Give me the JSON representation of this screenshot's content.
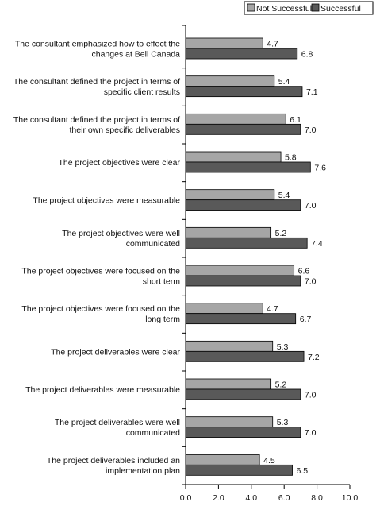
{
  "chart_data": {
    "type": "bar",
    "orientation": "horizontal",
    "categories": [
      [
        "The consultant emphasized how to effect the",
        "changes at Bell Canada"
      ],
      [
        "The consultant defined the project in terms of",
        "specific client results"
      ],
      [
        "The consultant defined the project in terms of",
        "their own specific deliverables"
      ],
      [
        "The project objectives were clear"
      ],
      [
        "The project objectives were measurable"
      ],
      [
        "The project objectives were well",
        "communicated"
      ],
      [
        "The project objectives were focused on the",
        "short term"
      ],
      [
        "The project objectives were focused on the",
        "long term"
      ],
      [
        "The project deliverables were clear"
      ],
      [
        "The project deliverables were measurable"
      ],
      [
        "The project deliverables were well",
        "communicated"
      ],
      [
        "The project deliverables included an",
        "implementation plan"
      ]
    ],
    "series": [
      {
        "name": "Not Successful",
        "color": "#a6a6a6",
        "values": [
          4.7,
          5.4,
          6.1,
          5.8,
          5.4,
          5.2,
          6.6,
          4.7,
          5.3,
          5.2,
          5.3,
          4.5
        ],
        "labels": [
          "4.7",
          "5.4",
          "6.1",
          "5.8",
          "5.4",
          "5.2",
          "6.6",
          "4.7",
          "5.3",
          "5.2",
          "5.3",
          "4.5"
        ]
      },
      {
        "name": "Successful",
        "color": "#595959",
        "values": [
          6.8,
          7.1,
          7.0,
          7.6,
          7.0,
          7.4,
          7.0,
          6.7,
          7.2,
          7.0,
          7.0,
          6.5
        ],
        "labels": [
          "6.8",
          "7.1",
          "7.0",
          "7.6",
          "7.0",
          "7.4",
          "7.0",
          "6.7",
          "7.2",
          "7.0",
          "7.0",
          "6.5"
        ]
      }
    ],
    "xlim": [
      0,
      10
    ],
    "xticks": [
      "0.0",
      "2.0",
      "4.0",
      "6.0",
      "8.0",
      "10.0"
    ],
    "legend_position": "top-right",
    "grid": false
  }
}
